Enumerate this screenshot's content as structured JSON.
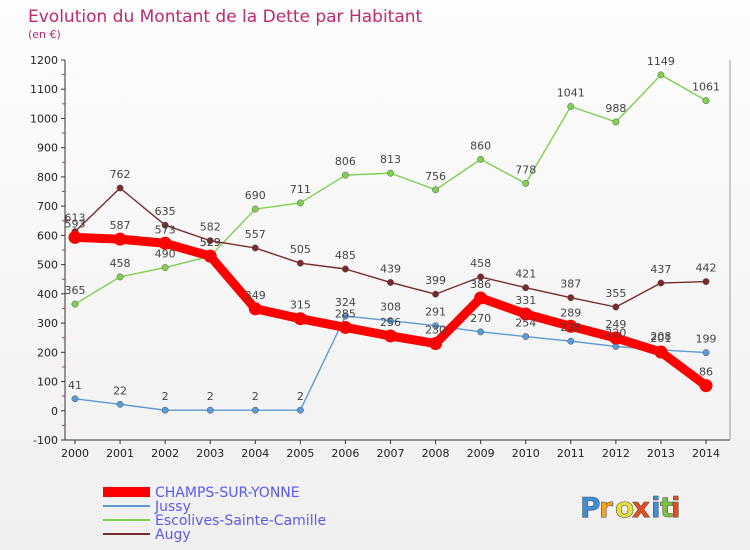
{
  "chart_data": {
    "type": "line",
    "title": "Evolution du Montant de la Dette par Habitant",
    "subtitle": "(en €)",
    "x": [
      "2000",
      "2001",
      "2002",
      "2003",
      "2004",
      "2005",
      "2006",
      "2007",
      "2008",
      "2009",
      "2010",
      "2011",
      "2012",
      "2013",
      "2014"
    ],
    "ylim": [
      -100,
      1200
    ],
    "yticks": [
      -100,
      0,
      100,
      200,
      300,
      400,
      500,
      600,
      700,
      800,
      900,
      1000,
      1100,
      1200
    ],
    "grid": false,
    "legend_position": "bottom-left",
    "series": [
      {
        "name": "Escolives-Sainte-Camille",
        "color": "#7ed04e",
        "values": [
          365,
          458,
          490,
          529,
          690,
          711,
          806,
          813,
          756,
          860,
          778,
          1041,
          988,
          1149,
          1061
        ]
      },
      {
        "name": "Augy",
        "color": "#7a2a2a",
        "values": [
          613,
          762,
          635,
          582,
          557,
          505,
          485,
          439,
          399,
          458,
          421,
          387,
          355,
          437,
          442
        ]
      },
      {
        "name": "Jussy",
        "color": "#5b9bd5",
        "values": [
          41,
          22,
          2,
          2,
          2,
          2,
          324,
          308,
          291,
          270,
          254,
          238,
          220,
          208,
          199
        ]
      },
      {
        "name": "CHAMPS-SUR-YONNE",
        "color": "#ff0000",
        "values": [
          593,
          587,
          573,
          529,
          349,
          315,
          285,
          256,
          230,
          386,
          331,
          289,
          249,
          201,
          86
        ]
      }
    ]
  },
  "legend": {
    "items": [
      {
        "label": "CHAMPS-SUR-YONNE",
        "color": "#ff0000",
        "width": 10
      },
      {
        "label": "Jussy",
        "color": "#5b9bd5",
        "width": 2
      },
      {
        "label": "Escolives-Sainte-Camille",
        "color": "#7ed04e",
        "width": 2
      },
      {
        "label": "Augy",
        "color": "#7a2a2a",
        "width": 2
      }
    ]
  },
  "logo": {
    "text": "Proxiti",
    "letter_colors": [
      "#3b8fd8",
      "#f4a51c",
      "#e8e03a",
      "#e84e1b",
      "#3b8fd8",
      "#7ec242",
      "#e84e1b"
    ]
  }
}
